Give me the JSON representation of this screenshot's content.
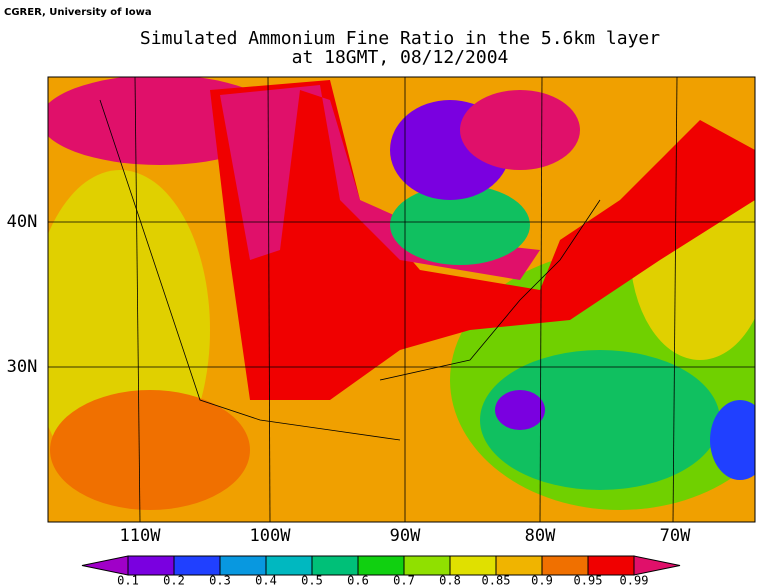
{
  "header": {
    "credit": "CGRER, University of Iowa",
    "title_lines": [
      "Simulated Ammonium Fine Ratio in the 5.6km layer",
      "at 18GMT, 08/12/2004"
    ]
  },
  "map": {
    "lat_labels": [
      "40N",
      "30N"
    ],
    "lon_labels": [
      "110W",
      "100W",
      "90W",
      "80W",
      "70W"
    ]
  },
  "colorbar": {
    "labels": [
      "0.1",
      "0.2",
      "0.3",
      "0.4",
      "0.5",
      "0.6",
      "0.7",
      "0.8",
      "0.85",
      "0.9",
      "0.95",
      "0.99"
    ],
    "colors": [
      "#a000c8",
      "#7a00e0",
      "#2040ff",
      "#0898e0",
      "#00b8c0",
      "#00c078",
      "#10d010",
      "#90e000",
      "#e0e000",
      "#f0b400",
      "#f07000",
      "#f00000",
      "#e0106a"
    ]
  }
}
